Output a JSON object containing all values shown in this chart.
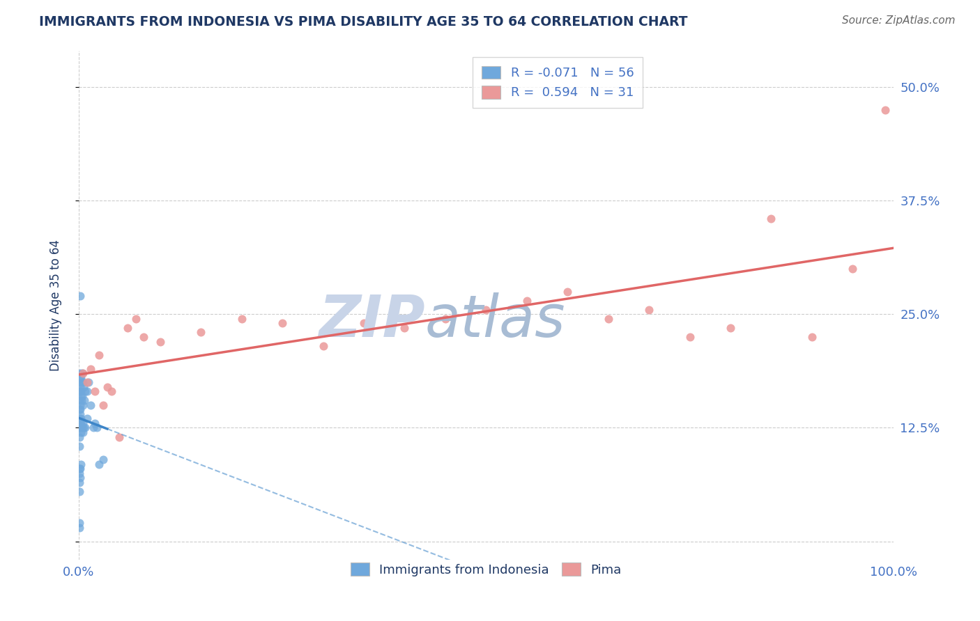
{
  "title": "IMMIGRANTS FROM INDONESIA VS PIMA DISABILITY AGE 35 TO 64 CORRELATION CHART",
  "source": "Source: ZipAtlas.com",
  "ylabel": "Disability Age 35 to 64",
  "xlim": [
    0,
    100
  ],
  "ylim": [
    -2,
    54
  ],
  "yticks": [
    0,
    12.5,
    25.0,
    37.5,
    50.0
  ],
  "xticks": [
    0,
    100
  ],
  "xtick_labels": [
    "0.0%",
    "100.0%"
  ],
  "ytick_labels": [
    "",
    "12.5%",
    "25.0%",
    "37.5%",
    "50.0%"
  ],
  "legend_blue_r": "R = -0.071",
  "legend_blue_n": "N = 56",
  "legend_pink_r": "R =  0.594",
  "legend_pink_n": "N = 31",
  "blue_scatter_x": [
    0.1,
    0.1,
    0.1,
    0.1,
    0.1,
    0.1,
    0.1,
    0.1,
    0.15,
    0.15,
    0.15,
    0.15,
    0.2,
    0.2,
    0.2,
    0.2,
    0.2,
    0.25,
    0.25,
    0.25,
    0.3,
    0.3,
    0.3,
    0.3,
    0.35,
    0.4,
    0.4,
    0.4,
    0.5,
    0.5,
    0.5,
    0.6,
    0.6,
    0.7,
    0.8,
    0.8,
    1.0,
    1.0,
    1.2,
    1.5,
    1.8,
    2.0,
    2.2,
    2.5,
    3.0,
    0.5,
    0.2,
    0.3,
    0.15,
    0.1,
    0.1,
    0.2,
    0.1,
    0.1,
    0.1,
    0.1
  ],
  "blue_scatter_y": [
    17.5,
    16.5,
    15.5,
    14.5,
    13.5,
    12.5,
    11.5,
    10.5,
    18.0,
    17.0,
    15.0,
    13.0,
    27.0,
    18.5,
    16.5,
    14.0,
    12.5,
    17.5,
    16.0,
    13.0,
    18.0,
    16.5,
    13.5,
    12.0,
    15.5,
    18.5,
    16.0,
    12.5,
    17.5,
    15.0,
    12.0,
    17.0,
    12.5,
    15.5,
    16.5,
    12.5,
    16.5,
    13.5,
    17.5,
    15.0,
    12.5,
    13.0,
    12.5,
    8.5,
    9.0,
    13.0,
    14.5,
    8.5,
    8.0,
    8.0,
    7.5,
    7.0,
    6.5,
    5.5,
    2.0,
    1.5
  ],
  "pink_scatter_x": [
    0.5,
    1.0,
    1.5,
    2.0,
    2.5,
    3.0,
    3.5,
    4.0,
    5.0,
    6.0,
    7.0,
    8.0,
    10.0,
    15.0,
    20.0,
    25.0,
    30.0,
    35.0,
    40.0,
    45.0,
    50.0,
    55.0,
    60.0,
    65.0,
    70.0,
    75.0,
    80.0,
    85.0,
    90.0,
    95.0,
    99.0
  ],
  "pink_scatter_y": [
    18.5,
    17.5,
    19.0,
    16.5,
    20.5,
    15.0,
    17.0,
    16.5,
    11.5,
    23.5,
    24.5,
    22.5,
    22.0,
    23.0,
    24.5,
    24.0,
    21.5,
    24.0,
    23.5,
    24.5,
    25.5,
    26.5,
    27.5,
    24.5,
    25.5,
    22.5,
    23.5,
    35.5,
    22.5,
    30.0,
    47.5
  ],
  "blue_color": "#6fa8dc",
  "pink_color": "#ea9999",
  "blue_line_color": "#3d85c8",
  "pink_line_color": "#e06666",
  "grid_color": "#cccccc",
  "background_color": "#ffffff",
  "title_color": "#1f3864",
  "tick_color": "#4472c4",
  "watermark_zip_color": "#c8d4e8",
  "watermark_atlas_color": "#a8bcd4"
}
